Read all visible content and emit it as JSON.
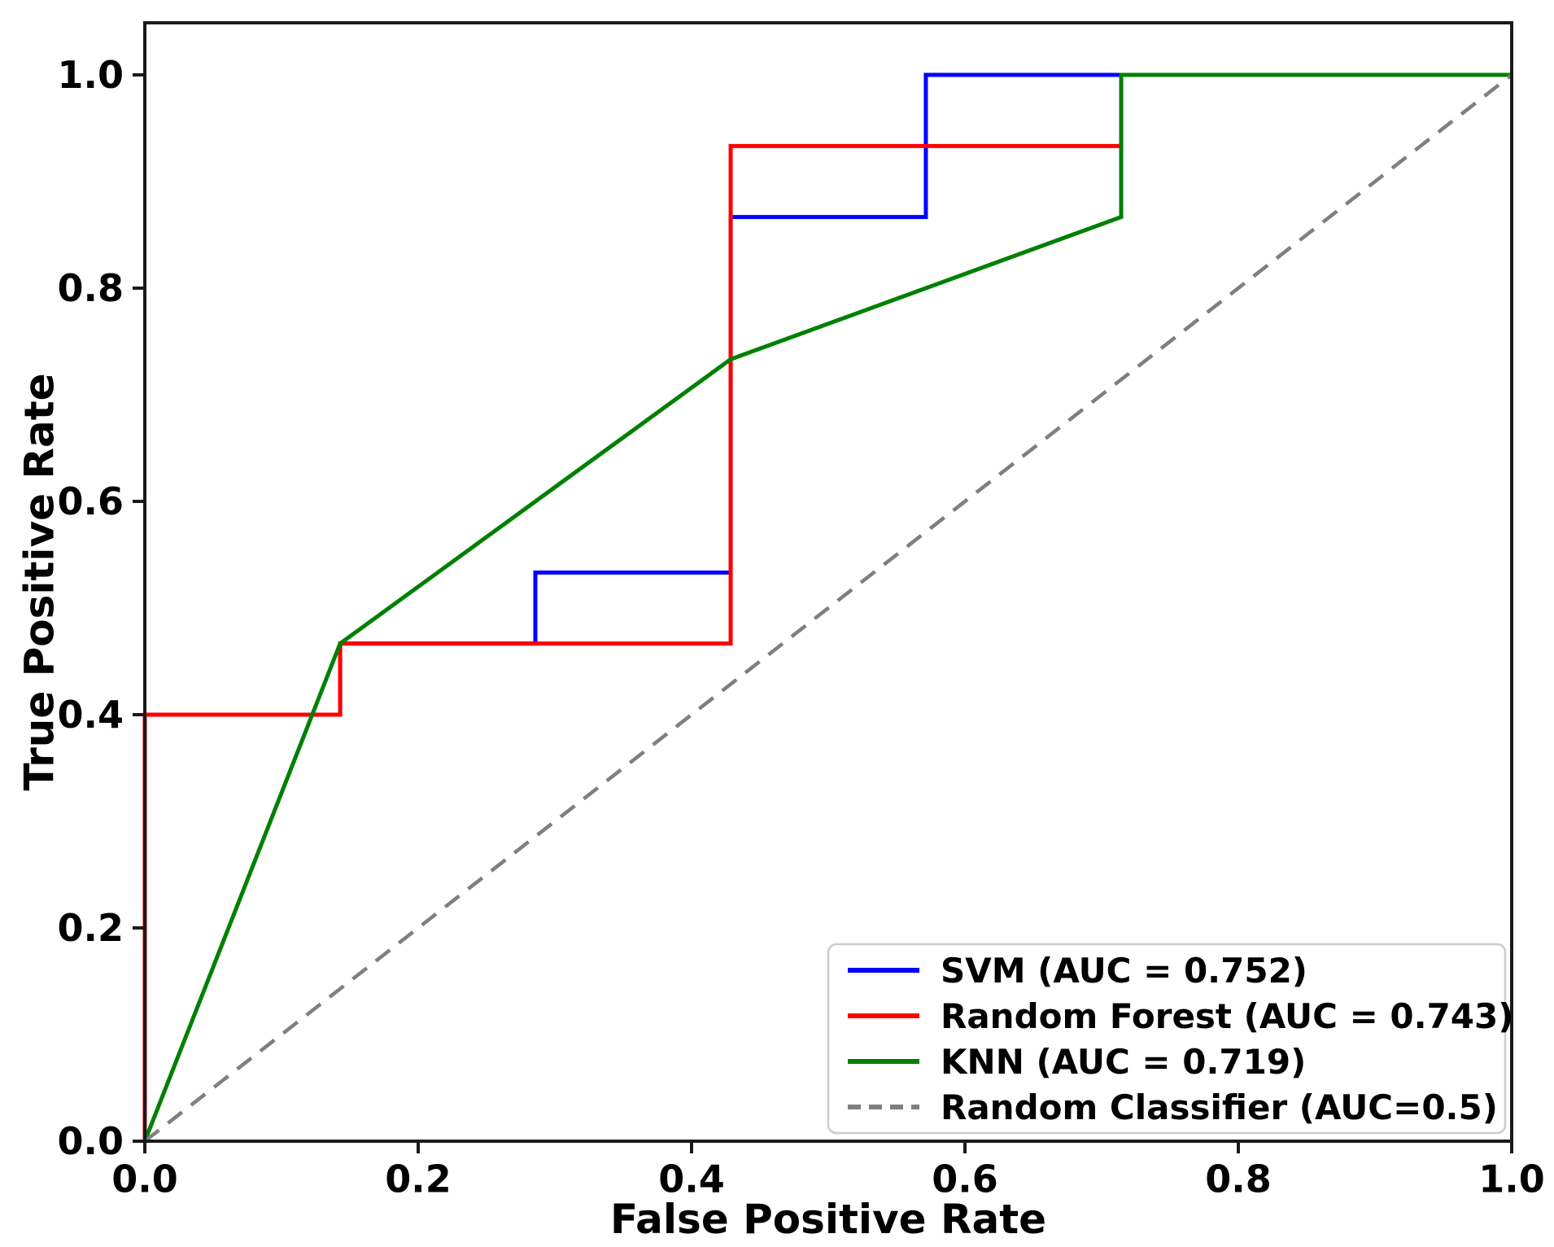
{
  "figure": {
    "background_color": "#ffffff",
    "spine_color": "#1a1a1a",
    "text_color": "#000000",
    "legend_border_color": "#cccccc"
  },
  "chart_data": {
    "type": "line",
    "subtype": "roc-curve",
    "title": "",
    "xlabel": "False Positive Rate",
    "ylabel": "True Positive Rate",
    "xlim": [
      0.0,
      1.0
    ],
    "ylim": [
      0.0,
      1.05
    ],
    "grid": false,
    "legend_position": "lower right",
    "x_ticks": [
      0.0,
      0.2,
      0.4,
      0.6,
      0.8,
      1.0
    ],
    "y_ticks": [
      0.0,
      0.2,
      0.4,
      0.6,
      0.8,
      1.0
    ],
    "x_tick_labels": [
      "0.0",
      "0.2",
      "0.4",
      "0.6",
      "0.8",
      "1.0"
    ],
    "y_tick_labels": [
      "0.0",
      "0.2",
      "0.4",
      "0.6",
      "0.8",
      "1.0"
    ],
    "series": [
      {
        "name": "SVM",
        "label": "SVM (AUC = 0.752)",
        "auc": 0.752,
        "color": "#0000ff",
        "style": "solid",
        "points": [
          [
            0,
            0
          ],
          [
            0,
            0.4
          ],
          [
            0.1429,
            0.4
          ],
          [
            0.1429,
            0.4667
          ],
          [
            0.2857,
            0.4667
          ],
          [
            0.2857,
            0.5333
          ],
          [
            0.4286,
            0.5333
          ],
          [
            0.4286,
            0.8667
          ],
          [
            0.5714,
            0.8667
          ],
          [
            0.5714,
            1.0
          ],
          [
            1.0,
            1.0
          ]
        ]
      },
      {
        "name": "Random Forest",
        "label": "Random Forest (AUC = 0.743)",
        "auc": 0.743,
        "color": "#ff0000",
        "style": "solid",
        "points": [
          [
            0,
            0
          ],
          [
            0,
            0.4
          ],
          [
            0.1429,
            0.4
          ],
          [
            0.1429,
            0.4667
          ],
          [
            0.4286,
            0.4667
          ],
          [
            0.4286,
            0.9333
          ],
          [
            0.7143,
            0.9333
          ],
          [
            0.7143,
            1.0
          ],
          [
            1.0,
            1.0
          ]
        ]
      },
      {
        "name": "KNN",
        "label": "KNN (AUC = 0.719)",
        "auc": 0.719,
        "color": "#008000",
        "style": "solid",
        "points": [
          [
            0,
            0
          ],
          [
            0.1429,
            0.4667
          ],
          [
            0.4286,
            0.7333
          ],
          [
            0.7143,
            0.8667
          ],
          [
            0.7143,
            1.0
          ],
          [
            1.0,
            1.0
          ]
        ]
      },
      {
        "name": "Random Classifier",
        "label": "Random Classifier (AUC=0.5)",
        "auc": 0.5,
        "color": "#7f7f7f",
        "style": "dashed",
        "points": [
          [
            0,
            0
          ],
          [
            1.0,
            1.0
          ]
        ]
      }
    ]
  }
}
